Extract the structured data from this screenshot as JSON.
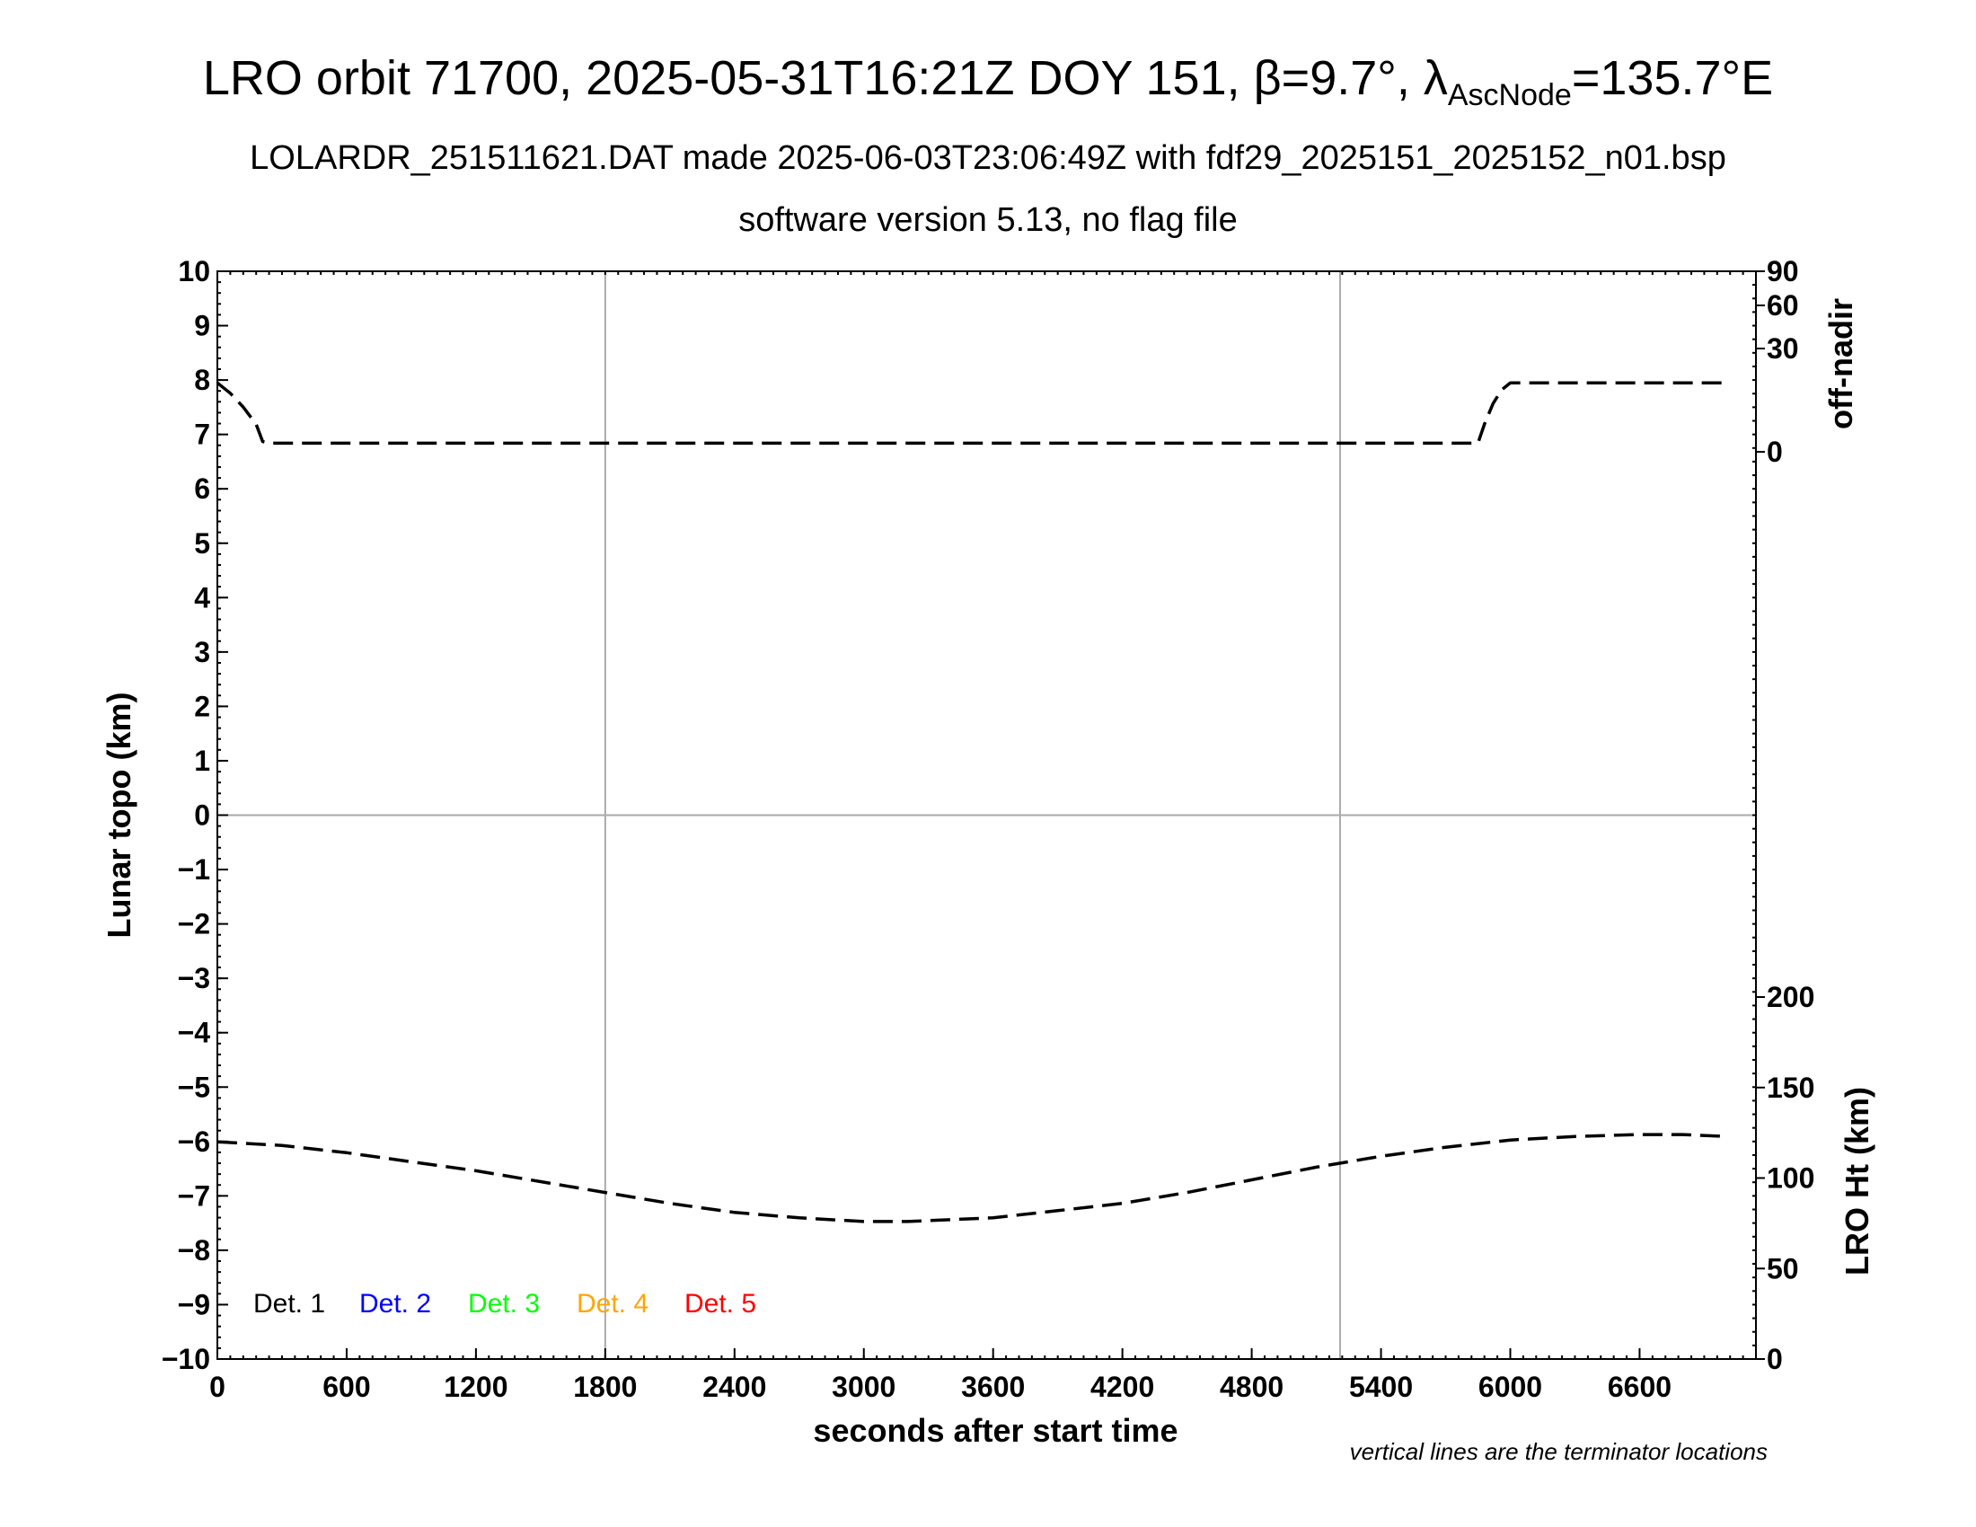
{
  "title": {
    "line1_prefix": "LRO orbit 71700, 2025-05-31T16:21Z DOY 151, β=9.7°, λ",
    "line1_subscript": "AscNode",
    "line1_suffix": "=135.7°E",
    "line2": "LOLARDR_251511621.DAT made 2025-06-03T23:06:49Z with fdf29_2025151_2025152_n01.bsp",
    "line3": "software version 5.13, no flag file"
  },
  "footnote": "vertical lines are the terminator locations",
  "colors": {
    "det1": "#000000",
    "det2": "#0000ff",
    "det3": "#00ff00",
    "det4": "#ffa500",
    "det5": "#ff0000",
    "grid": "#aaaaaa"
  },
  "chart_data": {
    "type": "line",
    "xlabel": "seconds after start time",
    "ylabel_left": "Lunar topo (km)",
    "ylabel_right_top": "off-nadir",
    "ylabel_right_bottom": "LRO Ht (km)",
    "xlim": [
      0,
      7140
    ],
    "ylim": [
      -10,
      10
    ],
    "x_ticks": [
      "0",
      "600",
      "1200",
      "1800",
      "2400",
      "3000",
      "3600",
      "4200",
      "4800",
      "5400",
      "6000",
      "6600"
    ],
    "y_ticks": [
      "10",
      "9",
      "8",
      "7",
      "6",
      "5",
      "4",
      "3",
      "2",
      "1",
      "0",
      "−1",
      "−2",
      "−3",
      "−4",
      "−5",
      "−6",
      "−7",
      "−8",
      "−9",
      "−10"
    ],
    "right_top_ticks": [
      "90",
      "60",
      "30",
      "0"
    ],
    "right_bottom_ticks": [
      "200",
      "150",
      "100",
      "50",
      "0"
    ],
    "terminators": [
      1800,
      5210
    ],
    "legend": [
      "Det. 1",
      "Det. 2",
      "Det. 3",
      "Det. 4",
      "Det. 5"
    ],
    "series": [
      {
        "name": "off-nadir",
        "axis": "right_top",
        "x": [
          0,
          60,
          120,
          180,
          210,
          240,
          300,
          600,
          1200,
          1800,
          2400,
          3000,
          3600,
          4200,
          4800,
          5400,
          5850,
          5880,
          5920,
          5960,
          6000,
          6300,
          6600,
          6900,
          7000
        ],
        "values": [
          20,
          17,
          13,
          8,
          3,
          2.5,
          2.5,
          2.5,
          2.5,
          2.5,
          2.5,
          2.5,
          2.5,
          2.5,
          2.5,
          2.5,
          2.5,
          8,
          14,
          18,
          20,
          20,
          20,
          20,
          20
        ]
      },
      {
        "name": "LRO Ht",
        "axis": "right_bottom",
        "x": [
          0,
          300,
          600,
          900,
          1200,
          1500,
          1800,
          2100,
          2400,
          2700,
          3000,
          3200,
          3600,
          3900,
          4200,
          4500,
          4800,
          5100,
          5400,
          5700,
          6000,
          6300,
          6600,
          6800,
          7000
        ],
        "values": [
          120,
          118,
          114,
          109,
          104,
          98,
          92,
          86,
          81,
          78,
          76,
          76,
          78,
          82,
          86,
          92,
          99,
          106,
          112,
          117,
          121,
          123,
          124,
          124,
          123
        ]
      }
    ]
  }
}
